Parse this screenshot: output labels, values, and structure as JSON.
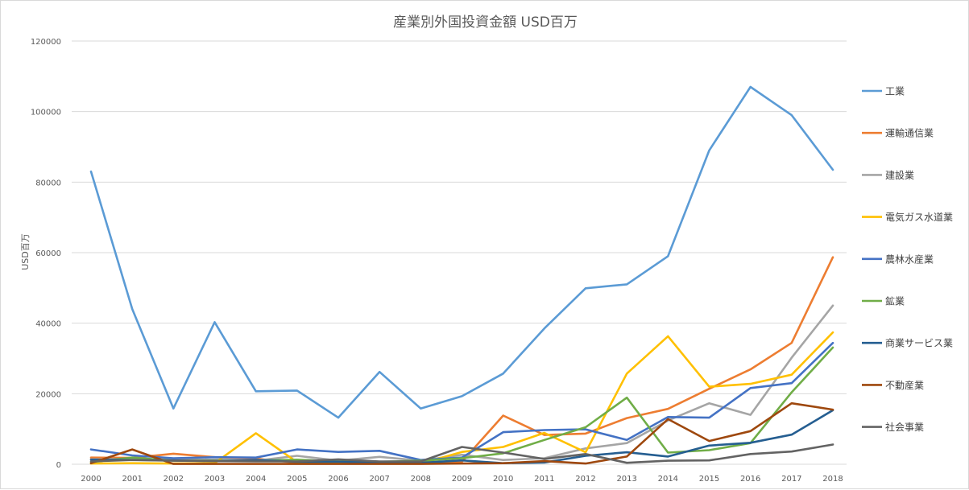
{
  "chart_data": {
    "type": "line",
    "title": "産業別外国投資金額  USD百万",
    "xlabel": "",
    "ylabel": "USD百万",
    "ylim": [
      0,
      120000
    ],
    "yticks": [
      0,
      20000,
      40000,
      60000,
      80000,
      100000,
      120000
    ],
    "ytick_labels": [
      "0",
      "20000",
      "40000",
      "60000",
      "80000",
      "100000",
      "120000"
    ],
    "grid": true,
    "legend_position": "right",
    "x": [
      "2000",
      "2001",
      "2002",
      "2003",
      "2004",
      "2005",
      "2006",
      "2007",
      "2008",
      "2009",
      "2010",
      "2011",
      "2012",
      "2013",
      "2014",
      "2015",
      "2016",
      "2017",
      "2018"
    ],
    "series": [
      {
        "name": "工業",
        "color": "#5b9bd5",
        "values": [
          83000,
          44000,
          15800,
          40300,
          20700,
          20900,
          13200,
          26200,
          15800,
          19300,
          25700,
          38500,
          49900,
          51000,
          59000,
          89000,
          107000,
          99000,
          83500
        ]
      },
      {
        "name": "運輸通信業",
        "color": "#ed7d31",
        "values": [
          1900,
          1800,
          3000,
          2000,
          1600,
          400,
          300,
          300,
          200,
          700,
          13800,
          8300,
          8700,
          13100,
          15700,
          21400,
          26900,
          34400,
          58700
        ]
      },
      {
        "name": "建設業",
        "color": "#a5a5a5",
        "values": [
          1400,
          1500,
          1300,
          1300,
          1000,
          2400,
          1000,
          2100,
          1000,
          2700,
          1200,
          1700,
          4500,
          6000,
          12400,
          17300,
          14000,
          30200,
          45000
        ]
      },
      {
        "name": "電気ガス水道業",
        "color": "#ffc000",
        "values": [
          200,
          300,
          200,
          300,
          8800,
          600,
          300,
          300,
          200,
          3500,
          4900,
          8900,
          3400,
          25700,
          36300,
          22000,
          22800,
          25400,
          37400
        ]
      },
      {
        "name": "農林水産業",
        "color": "#4472c4",
        "values": [
          4200,
          2500,
          1700,
          2000,
          1900,
          4200,
          3500,
          3800,
          1200,
          1900,
          9100,
          9700,
          9900,
          6900,
          13400,
          13200,
          21600,
          23000,
          34400
        ]
      },
      {
        "name": "鉱業",
        "color": "#70ad47",
        "values": [
          600,
          1900,
          1000,
          1000,
          1000,
          1300,
          800,
          700,
          1000,
          1700,
          3100,
          6900,
          10500,
          18900,
          3300,
          4000,
          6000,
          20400,
          33100
        ]
      },
      {
        "name": "商業サービス業",
        "color": "#255e91",
        "values": [
          1300,
          1200,
          1100,
          900,
          1200,
          700,
          700,
          500,
          400,
          1100,
          300,
          500,
          2400,
          3400,
          2200,
          5300,
          6100,
          8400,
          15300
        ]
      },
      {
        "name": "不動産業",
        "color": "#9e480e",
        "values": [
          300,
          4200,
          100,
          100,
          100,
          100,
          100,
          100,
          100,
          200,
          300,
          900,
          200,
          2200,
          12800,
          6600,
          9400,
          17300,
          15500
        ]
      },
      {
        "name": "社会事業",
        "color": "#636363",
        "values": [
          800,
          1200,
          1000,
          900,
          800,
          800,
          1400,
          800,
          800,
          4900,
          3300,
          1500,
          2900,
          400,
          1000,
          1100,
          2900,
          3600,
          5600
        ]
      }
    ]
  }
}
